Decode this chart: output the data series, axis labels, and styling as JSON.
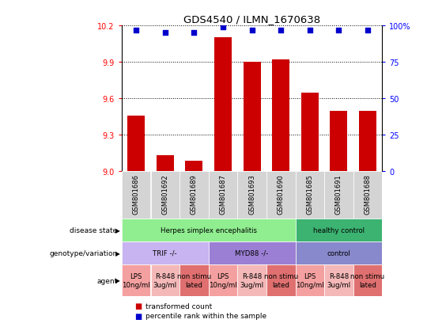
{
  "title": "GDS4540 / ILMN_1670638",
  "samples": [
    "GSM801686",
    "GSM801692",
    "GSM801689",
    "GSM801687",
    "GSM801693",
    "GSM801690",
    "GSM801685",
    "GSM801691",
    "GSM801688"
  ],
  "bar_values": [
    9.46,
    9.13,
    9.09,
    10.1,
    9.9,
    9.92,
    9.65,
    9.5,
    9.5
  ],
  "bar_base": 9.0,
  "percentile_values": [
    97,
    95,
    95,
    99,
    97,
    97,
    97,
    97,
    97
  ],
  "ylim": [
    9.0,
    10.2
  ],
  "y_ticks": [
    9.0,
    9.3,
    9.6,
    9.9,
    10.2
  ],
  "right_yticks": [
    0,
    25,
    50,
    75,
    100
  ],
  "bar_color": "#cc0000",
  "dot_color": "#0000cc",
  "disease_state": [
    {
      "label": "Herpes simplex encephalitis",
      "start": 0,
      "end": 6,
      "color": "#90ee90"
    },
    {
      "label": "healthy control",
      "start": 6,
      "end": 9,
      "color": "#3cb371"
    }
  ],
  "genotype": [
    {
      "label": "TRIF -/-",
      "start": 0,
      "end": 3,
      "color": "#c8b4f0"
    },
    {
      "label": "MYD88 -/-",
      "start": 3,
      "end": 6,
      "color": "#9b7fd4"
    },
    {
      "label": "control",
      "start": 6,
      "end": 9,
      "color": "#8888cc"
    }
  ],
  "agent": [
    {
      "label": "LPS\n10ng/ml",
      "start": 0,
      "end": 1,
      "color": "#f4a0a0"
    },
    {
      "label": "R-848\n3ug/ml",
      "start": 1,
      "end": 2,
      "color": "#f4b8b8"
    },
    {
      "label": "non stimu\nlated",
      "start": 2,
      "end": 3,
      "color": "#e07070"
    },
    {
      "label": "LPS\n10ng/ml",
      "start": 3,
      "end": 4,
      "color": "#f4a0a0"
    },
    {
      "label": "R-848\n3ug/ml",
      "start": 4,
      "end": 5,
      "color": "#f4b8b8"
    },
    {
      "label": "non stimu\nlated",
      "start": 5,
      "end": 6,
      "color": "#e07070"
    },
    {
      "label": "LPS\n10ng/ml",
      "start": 6,
      "end": 7,
      "color": "#f4a0a0"
    },
    {
      "label": "R-848\n3ug/ml",
      "start": 7,
      "end": 8,
      "color": "#f4b8b8"
    },
    {
      "label": "non stimu\nlated",
      "start": 8,
      "end": 9,
      "color": "#e07070"
    }
  ],
  "row_labels": [
    "disease state",
    "genotype/variation",
    "agent"
  ],
  "legend_items": [
    {
      "label": "transformed count",
      "color": "#cc0000"
    },
    {
      "label": "percentile rank within the sample",
      "color": "#0000cc"
    }
  ]
}
